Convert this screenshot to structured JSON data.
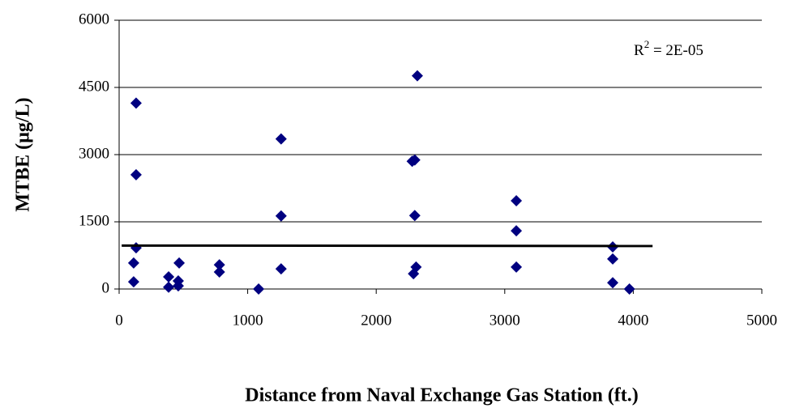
{
  "chart_data": {
    "type": "scatter",
    "x_label": "Distance from Naval Exchange Gas Station (ft.)",
    "y_label": "MTBE (µg/L)",
    "annotation": {
      "base": "R",
      "sup": "2",
      "text": " = 2E-05"
    },
    "xlim": [
      0,
      5000
    ],
    "xticks": [
      0,
      1000,
      2000,
      3000,
      4000,
      5000
    ],
    "ylim": [
      0,
      6000
    ],
    "yticks": [
      0,
      1500,
      3000,
      4500,
      6000
    ],
    "grid": true,
    "series": [
      {
        "color": "#000080",
        "marker": "diamond",
        "x": [
          132,
          132,
          132,
          113,
          113,
          385,
          385,
          460,
          460,
          467,
          780,
          780,
          1085,
          1260,
          1260,
          1260,
          2320,
          2300,
          2280,
          2300,
          2310,
          2290,
          3090,
          3090,
          3090,
          3840,
          3840,
          3840,
          3970
        ],
        "values": [
          4150,
          2550,
          920,
          580,
          160,
          270,
          40,
          180,
          70,
          580,
          540,
          380,
          0,
          3350,
          1630,
          450,
          4760,
          2880,
          2850,
          1640,
          490,
          340,
          1970,
          1300,
          490,
          940,
          670,
          140,
          0
        ]
      },
      {
        "color": "#000000",
        "marker": "trendline",
        "x": [
          20,
          4150
        ],
        "values": [
          970,
          960
        ]
      }
    ]
  }
}
